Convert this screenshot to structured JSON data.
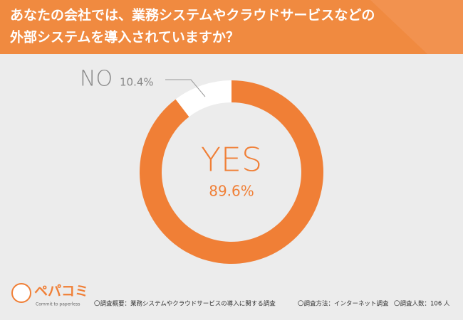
{
  "chart_data": {
    "type": "donut",
    "title": [
      "あなたの会社では、業務システムやクラウドサービスなどの",
      "外部システムを導入されていますか？"
    ],
    "categories": [
      "YES",
      "NO"
    ],
    "values": [
      89.6,
      10.4
    ],
    "value_labels": [
      "89.6%",
      "10.4%"
    ],
    "colors": [
      "#f07f36",
      "#ffffff"
    ]
  },
  "footer": {
    "logo": "ペパコミ",
    "tagline": "Commit to paperless",
    "notes": [
      "〇調査概要：業務システムやクラウドサービスの導入に関する調査",
      "〇調査方法：インターネット調査",
      "〇調査人数：106 人"
    ]
  }
}
